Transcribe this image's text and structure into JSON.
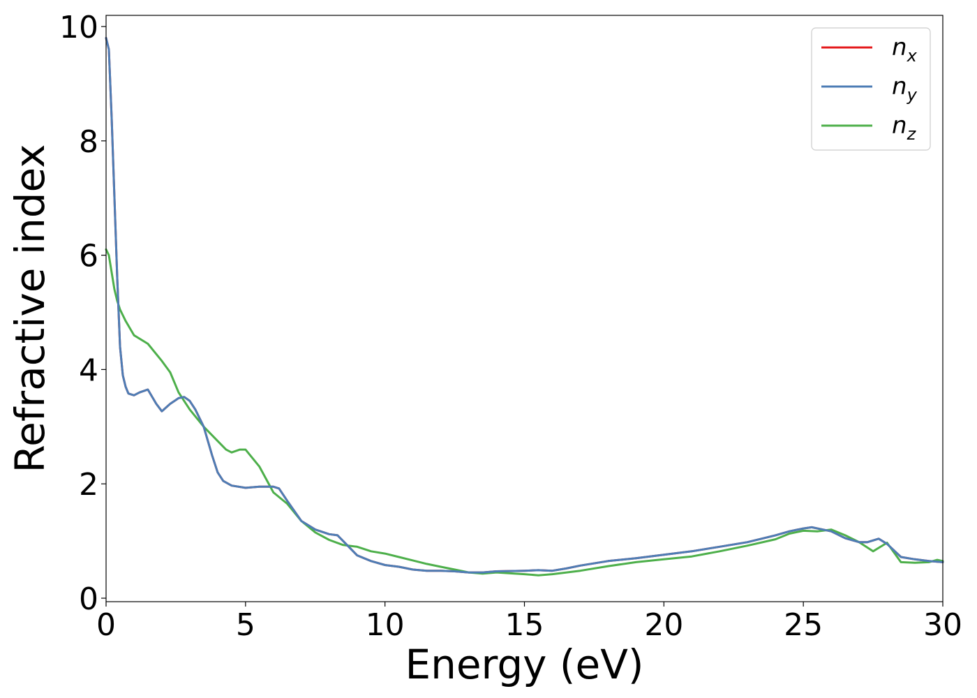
{
  "chart_data": {
    "type": "line",
    "title": "",
    "xlabel": "Energy (eV)",
    "ylabel": "Refractive index",
    "xlim": [
      0,
      30
    ],
    "ylim": [
      0,
      10
    ],
    "xticks": [
      0,
      5,
      10,
      15,
      20,
      25,
      30
    ],
    "yticks": [
      0,
      2,
      4,
      6,
      8,
      10
    ],
    "grid": false,
    "legend_position": "top-right",
    "series": [
      {
        "name": "n",
        "subscript": "x",
        "color": "#e41a1c",
        "x": [
          0,
          0.1,
          0.2,
          0.3,
          0.4,
          0.5,
          0.6,
          0.7,
          0.8,
          1.0,
          1.2,
          1.5,
          1.8,
          2.0,
          2.3,
          2.6,
          2.8,
          3.0,
          3.2,
          3.5,
          3.8,
          4.0,
          4.2,
          4.5,
          5.0,
          5.5,
          6.0,
          6.2,
          6.5,
          7.0,
          7.5,
          8.0,
          8.3,
          8.6,
          9.0,
          9.5,
          10.0,
          10.5,
          11.0,
          11.5,
          12.0,
          12.5,
          13.0,
          13.5,
          14.0,
          15.0,
          15.5,
          16.0,
          16.5,
          17.0,
          18.0,
          19.0,
          20.0,
          21.0,
          22.0,
          23.0,
          24.0,
          24.5,
          25.0,
          25.3,
          25.7,
          26.0,
          26.5,
          27.0,
          27.3,
          27.7,
          28.0,
          28.5,
          29.0,
          29.5,
          30.0
        ],
        "y": [
          9.8,
          9.6,
          8.4,
          7.0,
          5.6,
          4.4,
          3.9,
          3.7,
          3.58,
          3.55,
          3.6,
          3.65,
          3.4,
          3.27,
          3.4,
          3.5,
          3.52,
          3.45,
          3.3,
          3.0,
          2.5,
          2.2,
          2.05,
          1.97,
          1.93,
          1.95,
          1.95,
          1.92,
          1.7,
          1.35,
          1.2,
          1.12,
          1.1,
          0.95,
          0.75,
          0.65,
          0.58,
          0.55,
          0.5,
          0.48,
          0.48,
          0.47,
          0.45,
          0.45,
          0.47,
          0.48,
          0.49,
          0.48,
          0.52,
          0.57,
          0.65,
          0.7,
          0.76,
          0.82,
          0.9,
          0.98,
          1.1,
          1.17,
          1.22,
          1.24,
          1.2,
          1.17,
          1.05,
          0.98,
          0.98,
          1.04,
          0.95,
          0.72,
          0.68,
          0.65,
          0.63
        ]
      },
      {
        "name": "n",
        "subscript": "y",
        "color": "#4d7db5",
        "x": [
          0,
          0.1,
          0.2,
          0.3,
          0.4,
          0.5,
          0.6,
          0.7,
          0.8,
          1.0,
          1.2,
          1.5,
          1.8,
          2.0,
          2.3,
          2.6,
          2.8,
          3.0,
          3.2,
          3.5,
          3.8,
          4.0,
          4.2,
          4.5,
          5.0,
          5.5,
          6.0,
          6.2,
          6.5,
          7.0,
          7.5,
          8.0,
          8.3,
          8.6,
          9.0,
          9.5,
          10.0,
          10.5,
          11.0,
          11.5,
          12.0,
          12.5,
          13.0,
          13.5,
          14.0,
          15.0,
          15.5,
          16.0,
          16.5,
          17.0,
          18.0,
          19.0,
          20.0,
          21.0,
          22.0,
          23.0,
          24.0,
          24.5,
          25.0,
          25.3,
          25.7,
          26.0,
          26.5,
          27.0,
          27.3,
          27.7,
          28.0,
          28.5,
          29.0,
          29.5,
          30.0
        ],
        "y": [
          9.8,
          9.6,
          8.4,
          7.0,
          5.6,
          4.4,
          3.9,
          3.7,
          3.58,
          3.55,
          3.6,
          3.65,
          3.4,
          3.27,
          3.4,
          3.5,
          3.52,
          3.45,
          3.3,
          3.0,
          2.5,
          2.2,
          2.05,
          1.97,
          1.93,
          1.95,
          1.95,
          1.92,
          1.7,
          1.35,
          1.2,
          1.12,
          1.1,
          0.95,
          0.75,
          0.65,
          0.58,
          0.55,
          0.5,
          0.48,
          0.48,
          0.47,
          0.45,
          0.45,
          0.47,
          0.48,
          0.49,
          0.48,
          0.52,
          0.57,
          0.65,
          0.7,
          0.76,
          0.82,
          0.9,
          0.98,
          1.1,
          1.17,
          1.22,
          1.24,
          1.2,
          1.17,
          1.05,
          0.98,
          0.98,
          1.04,
          0.95,
          0.72,
          0.68,
          0.65,
          0.63
        ]
      },
      {
        "name": "n",
        "subscript": "z",
        "color": "#4daf4a",
        "x": [
          0,
          0.1,
          0.2,
          0.3,
          0.4,
          0.5,
          0.7,
          1.0,
          1.5,
          2.0,
          2.3,
          2.6,
          3.0,
          3.5,
          4.0,
          4.3,
          4.5,
          4.8,
          5.0,
          5.5,
          6.0,
          6.5,
          7.0,
          7.5,
          8.0,
          8.5,
          9.0,
          9.5,
          10.0,
          10.5,
          11.0,
          11.5,
          12.0,
          12.5,
          13.0,
          13.5,
          14.0,
          15.0,
          15.5,
          16.0,
          17.0,
          18.0,
          19.0,
          20.0,
          21.0,
          22.0,
          23.0,
          24.0,
          24.5,
          25.0,
          25.5,
          26.0,
          26.5,
          27.0,
          27.5,
          28.0,
          28.5,
          29.0,
          29.5,
          29.8,
          30.0
        ],
        "y": [
          6.1,
          6.0,
          5.7,
          5.4,
          5.2,
          5.05,
          4.85,
          4.6,
          4.45,
          4.15,
          3.95,
          3.6,
          3.3,
          3.0,
          2.75,
          2.6,
          2.55,
          2.6,
          2.6,
          2.3,
          1.85,
          1.65,
          1.35,
          1.15,
          1.02,
          0.93,
          0.9,
          0.82,
          0.78,
          0.72,
          0.66,
          0.6,
          0.55,
          0.5,
          0.45,
          0.43,
          0.45,
          0.42,
          0.4,
          0.42,
          0.48,
          0.56,
          0.63,
          0.68,
          0.73,
          0.82,
          0.92,
          1.03,
          1.13,
          1.18,
          1.17,
          1.2,
          1.1,
          0.98,
          0.82,
          0.97,
          0.63,
          0.62,
          0.63,
          0.67,
          0.65
        ]
      }
    ]
  }
}
